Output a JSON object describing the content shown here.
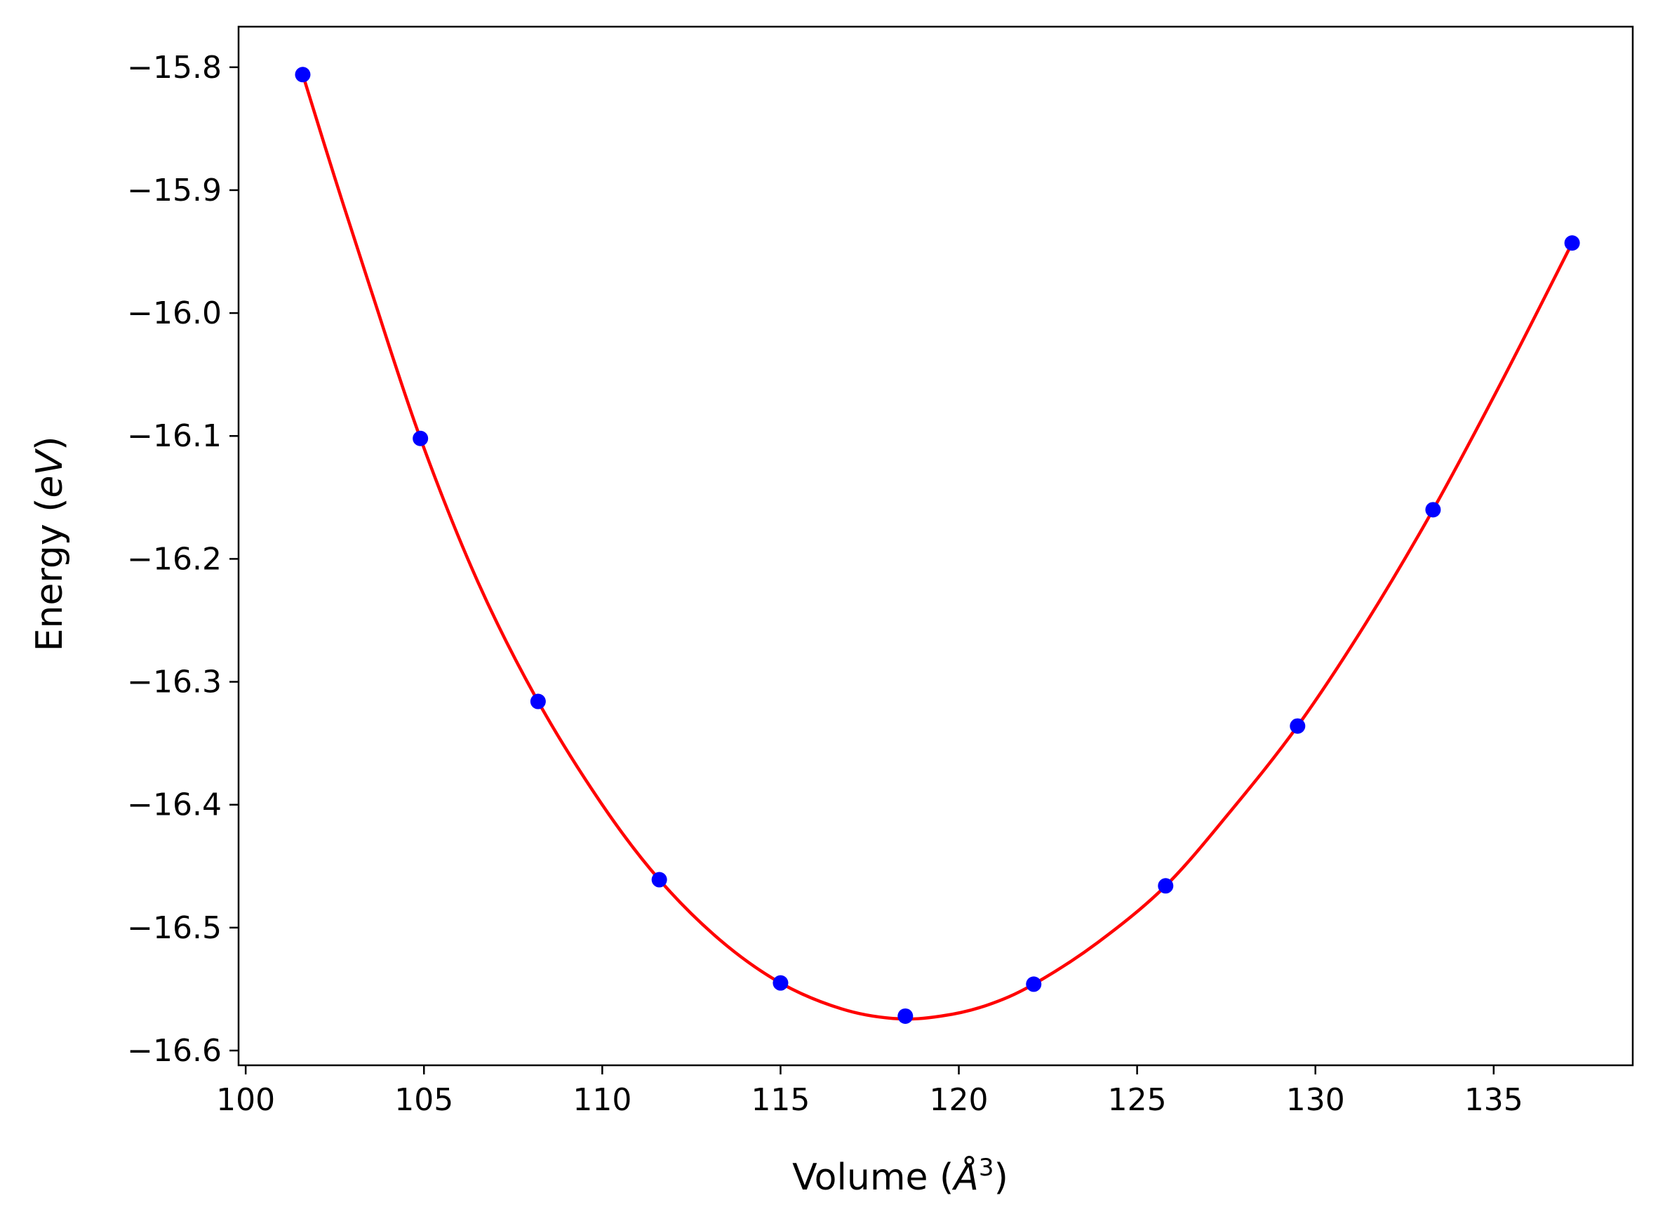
{
  "chart_data": {
    "type": "scatter",
    "title": "",
    "xlabel": "Volume (Å³)",
    "ylabel": "Energy (eV)",
    "xlabel_parts": {
      "prefix": "Volume (",
      "symbol": "Å",
      "exponent": "3",
      "suffix": ")"
    },
    "ylabel_parts": {
      "prefix": "Energy (",
      "symbol": "eV",
      "suffix": ")"
    },
    "xlim": [
      99.8,
      138.9
    ],
    "ylim": [
      -16.612,
      -15.767
    ],
    "xticks": [
      100,
      105,
      110,
      115,
      120,
      125,
      130,
      135
    ],
    "yticks": [
      -15.8,
      -15.9,
      -16.0,
      -16.1,
      -16.2,
      -16.3,
      -16.4,
      -16.5,
      -16.6
    ],
    "xtick_labels": [
      "100",
      "105",
      "110",
      "115",
      "120",
      "125",
      "130",
      "135"
    ],
    "ytick_labels": [
      "−15.8",
      "−15.9",
      "−16.0",
      "−16.1",
      "−16.2",
      "−16.3",
      "−16.4",
      "−16.5",
      "−16.6"
    ],
    "grid": false,
    "series": [
      {
        "kind": "scatter",
        "color": "#0000ff",
        "x": [
          101.6,
          104.9,
          108.2,
          111.6,
          115.0,
          118.5,
          122.1,
          125.8,
          129.5,
          133.3,
          137.2
        ],
        "y": [
          -15.806,
          -16.102,
          -16.316,
          -16.461,
          -16.545,
          -16.572,
          -16.546,
          -16.466,
          -16.336,
          -16.16,
          -15.943
        ]
      },
      {
        "kind": "line",
        "color": "#ff0000",
        "x": [
          101.6,
          102.5,
          103.5,
          104.9,
          106.5,
          108.2,
          110.0,
          111.6,
          113.3,
          115.0,
          116.7,
          118.2,
          119.5,
          120.8,
          122.1,
          123.9,
          125.8,
          127.6,
          129.5,
          131.4,
          133.3,
          135.2,
          137.2
        ],
        "y": [
          -15.806,
          -15.89,
          -15.98,
          -16.102,
          -16.218,
          -16.316,
          -16.4,
          -16.461,
          -16.51,
          -16.545,
          -16.566,
          -16.574,
          -16.572,
          -16.563,
          -16.546,
          -16.512,
          -16.466,
          -16.406,
          -16.336,
          -16.253,
          -16.16,
          -16.057,
          -15.943
        ]
      }
    ]
  }
}
